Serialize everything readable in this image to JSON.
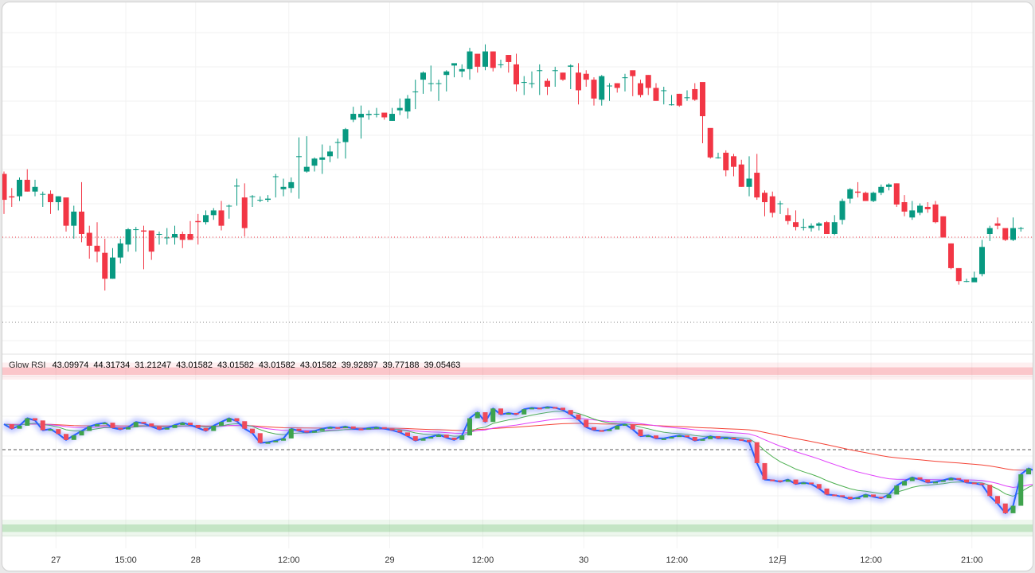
{
  "chart_data": [
    {
      "type": "candlestick",
      "panel": "price",
      "x_labels": [
        "27",
        "15:00",
        "28",
        "12:00",
        "29",
        "12:00",
        "30",
        "12:00",
        "12月",
        "12:00",
        "21:00"
      ],
      "ohlc": [
        [
          0,
          126,
          104,
          128,
          92
        ],
        [
          1,
          107,
          106,
          114,
          98
        ],
        [
          2,
          107,
          121,
          123,
          103
        ],
        [
          3,
          121,
          111,
          130,
          111
        ],
        [
          4,
          111,
          115,
          121,
          107
        ],
        [
          5,
          109,
          109,
          111,
          98
        ],
        [
          6,
          109,
          102,
          112,
          92
        ],
        [
          7,
          102,
          107,
          107,
          95
        ],
        [
          8,
          106,
          82,
          97,
          77
        ],
        [
          9,
          82,
          94,
          99,
          71
        ],
        [
          10,
          94,
          75,
          119,
          68
        ],
        [
          11,
          76,
          65,
          82,
          54
        ],
        [
          12,
          65,
          60,
          85,
          51
        ],
        [
          13,
          59,
          37,
          71,
          27
        ],
        [
          14,
          37,
          55,
          63,
          37
        ],
        [
          15,
          55,
          67,
          71,
          50
        ],
        [
          16,
          66,
          79,
          80,
          60
        ],
        [
          17,
          79,
          79,
          81,
          60
        ],
        [
          18,
          78,
          77,
          82,
          45
        ],
        [
          19,
          78,
          60,
          66,
          53
        ],
        [
          20,
          75,
          75,
          77,
          66
        ],
        [
          21,
          72,
          72,
          80,
          66
        ],
        [
          22,
          72,
          75,
          82,
          66
        ],
        [
          23,
          75,
          70,
          77,
          63
        ],
        [
          24,
          75,
          70,
          86,
          70
        ],
        [
          25,
          86,
          85,
          92,
          66
        ],
        [
          26,
          85,
          91,
          95,
          83
        ],
        [
          27,
          91,
          95,
          97,
          87
        ],
        [
          28,
          95,
          82,
          103,
          78
        ],
        [
          29,
          99,
          99,
          100,
          88
        ],
        [
          30,
          116,
          116,
          122,
          99
        ],
        [
          31,
          106,
          80,
          118,
          73
        ],
        [
          32,
          107,
          107,
          108,
          98
        ],
        [
          33,
          104,
          104,
          107,
          102
        ],
        [
          34,
          104,
          105,
          108,
          102
        ],
        [
          35,
          124,
          124,
          126,
          106
        ],
        [
          36,
          113,
          115,
          122,
          107
        ],
        [
          37,
          114,
          119,
          123,
          110
        ],
        [
          38,
          141,
          141,
          157,
          105
        ],
        [
          39,
          128,
          132,
          158,
          127
        ],
        [
          40,
          133,
          139,
          140,
          128
        ],
        [
          41,
          138,
          140,
          151,
          126
        ],
        [
          42,
          141,
          145,
          150,
          136
        ],
        [
          43,
          153,
          153,
          156,
          139
        ],
        [
          44,
          153,
          164,
          165,
          139
        ],
        [
          45,
          172,
          177,
          183,
          170
        ],
        [
          46,
          174,
          177,
          184,
          156
        ],
        [
          47,
          176,
          177,
          180,
          172
        ],
        [
          48,
          177,
          177,
          182,
          174
        ],
        [
          49,
          178,
          174,
          176,
          172
        ],
        [
          50,
          171,
          177,
          182,
          171
        ],
        [
          51,
          180,
          182,
          190,
          176
        ],
        [
          52,
          179,
          190,
          193,
          173
        ],
        [
          53,
          196,
          196,
          206,
          181
        ],
        [
          54,
          206,
          212,
          213,
          194
        ],
        [
          55,
          203,
          203,
          218,
          196
        ],
        [
          56,
          203,
          203,
          206,
          188
        ],
        [
          57,
          210,
          213,
          214,
          196
        ],
        [
          58,
          218,
          220,
          219,
          208
        ],
        [
          59,
          213,
          215,
          219,
          208
        ],
        [
          60,
          215,
          230,
          233,
          206
        ],
        [
          61,
          228,
          217,
          219,
          212
        ],
        [
          62,
          217,
          230,
          236,
          214
        ],
        [
          63,
          230,
          216,
          230,
          213
        ],
        [
          64,
          219,
          219,
          223,
          216
        ],
        [
          65,
          227,
          221,
          227,
          212
        ],
        [
          66,
          219,
          202,
          228,
          196
        ],
        [
          67,
          204,
          204,
          209,
          193
        ],
        [
          68,
          203,
          203,
          213,
          199
        ],
        [
          69,
          214,
          214,
          219,
          193
        ],
        [
          70,
          205,
          200,
          207,
          193
        ],
        [
          71,
          214,
          214,
          217,
          200
        ],
        [
          72,
          212,
          206,
          212,
          205
        ],
        [
          73,
          217,
          218,
          219,
          198
        ],
        [
          74,
          212,
          197,
          220,
          185
        ],
        [
          75,
          211,
          206,
          214,
          200
        ],
        [
          76,
          206,
          190,
          208,
          184
        ],
        [
          77,
          189,
          209,
          210,
          184
        ],
        [
          78,
          201,
          201,
          203,
          188
        ],
        [
          79,
          203,
          199,
          203,
          195
        ],
        [
          80,
          208,
          208,
          211,
          196
        ],
        [
          81,
          214,
          209,
          211,
          192
        ],
        [
          82,
          203,
          193,
          206,
          191
        ],
        [
          83,
          210,
          199,
          210,
          193
        ],
        [
          84,
          199,
          188,
          203,
          188
        ],
        [
          85,
          197,
          197,
          200,
          185
        ],
        [
          86,
          185,
          185,
          193,
          184
        ],
        [
          87,
          194,
          184,
          194,
          183
        ],
        [
          88,
          191,
          191,
          197,
          188
        ],
        [
          89,
          198,
          189,
          203,
          188
        ],
        [
          90,
          204,
          175,
          203,
          152
        ],
        [
          91,
          165,
          140,
          164,
          139
        ],
        [
          92,
          140,
          140,
          144,
          139
        ],
        [
          93,
          144,
          129,
          146,
          124
        ],
        [
          94,
          141,
          132,
          143,
          124
        ],
        [
          95,
          134,
          115,
          138,
          115
        ],
        [
          96,
          115,
          122,
          141,
          107
        ],
        [
          97,
          127,
          106,
          143,
          104
        ],
        [
          98,
          110,
          102,
          112,
          90
        ],
        [
          99,
          107,
          93,
          111,
          89
        ],
        [
          100,
          101,
          101,
          103,
          92
        ],
        [
          101,
          91,
          86,
          97,
          83
        ],
        [
          102,
          85,
          81,
          95,
          78
        ],
        [
          103,
          81,
          81,
          88,
          78
        ],
        [
          104,
          80,
          82,
          84,
          77
        ],
        [
          105,
          82,
          84,
          85,
          78
        ],
        [
          106,
          85,
          75,
          86,
          75
        ],
        [
          107,
          75,
          85,
          91,
          74
        ],
        [
          108,
          87,
          103,
          105,
          83
        ],
        [
          109,
          105,
          113,
          114,
          101
        ],
        [
          110,
          111,
          110,
          119,
          106
        ],
        [
          111,
          110,
          103,
          111,
          103
        ],
        [
          112,
          103,
          110,
          111,
          102
        ],
        [
          113,
          110,
          115,
          117,
          108
        ],
        [
          114,
          115,
          117,
          118,
          112
        ],
        [
          115,
          118,
          100,
          118,
          98
        ],
        [
          116,
          102,
          94,
          108,
          90
        ],
        [
          117,
          89,
          95,
          103,
          87
        ],
        [
          118,
          93,
          99,
          101,
          91
        ],
        [
          119,
          98,
          96,
          102,
          93
        ],
        [
          120,
          100,
          85,
          103,
          84
        ],
        [
          121,
          90,
          72,
          90,
          74
        ],
        [
          122,
          67,
          46,
          67,
          45
        ],
        [
          123,
          46,
          35,
          46,
          32
        ],
        [
          124,
          35,
          35,
          37,
          34
        ],
        [
          125,
          34,
          38,
          43,
          36
        ],
        [
          126,
          41,
          64,
          70,
          39
        ],
        [
          127,
          75,
          80,
          82,
          69
        ],
        [
          128,
          84,
          82,
          89,
          79
        ],
        [
          129,
          80,
          70,
          76,
          69
        ],
        [
          130,
          70,
          80,
          89,
          69
        ],
        [
          131,
          80,
          80,
          81,
          77
        ]
      ]
    },
    {
      "type": "line",
      "panel": "indicator",
      "title": "Glow RSI",
      "legend_values": [
        "43.09974",
        "44.31734",
        "31.21247",
        "43.01582",
        "43.01582",
        "43.01582",
        "43.01582",
        "39.92897",
        "39.77188",
        "39.05463"
      ],
      "legend_colors": [
        "#f23645",
        "#f23645",
        "#f23645",
        "#f23645",
        "#2962ff",
        "#2962ff",
        "#2962ff",
        "#4caf50",
        "#e040fb",
        "#f44336"
      ],
      "ylim": [
        25,
        75
      ],
      "overbought_band": [
        70,
        72
      ],
      "oversold_band": [
        28,
        30
      ],
      "midline": 50,
      "rsi": [
        56.8,
        55.6,
        56.4,
        58.4,
        57.8,
        55.2,
        55.5,
        54.2,
        52.6,
        53.8,
        55.0,
        56.2,
        56.8,
        57.2,
        55.8,
        55.4,
        56.0,
        57.4,
        57.0,
        56.2,
        55.4,
        55.8,
        56.6,
        57.2,
        56.6,
        55.8,
        55.0,
        56.4,
        57.4,
        58.4,
        57.6,
        55.6,
        54.4,
        51.8,
        52.0,
        52.4,
        53.0,
        55.6,
        55.0,
        54.6,
        55.0,
        55.6,
        56.0,
        55.8,
        56.2,
        55.6,
        55.4,
        55.8,
        56.0,
        55.6,
        55.2,
        54.6,
        53.6,
        52.4,
        53.0,
        53.4,
        54.0,
        53.2,
        52.6,
        53.8,
        58.4,
        60.0,
        57.4,
        61.0,
        59.4,
        59.8,
        59.4,
        60.8,
        61.2,
        61.0,
        61.4,
        61.2,
        60.6,
        59.4,
        58.0,
        56.0,
        55.2,
        55.0,
        55.4,
        56.4,
        56.8,
        55.4,
        53.6,
        53.8,
        53.0,
        53.0,
        53.4,
        53.8,
        53.4,
        52.4,
        52.8,
        53.6,
        53.0,
        53.2,
        52.8,
        52.6,
        52.0,
        46.4,
        42.0,
        41.8,
        41.4,
        42.0,
        40.8,
        41.2,
        40.8,
        39.6,
        38.0,
        37.8,
        37.4,
        36.8,
        37.2,
        38.0,
        37.4,
        37.0,
        38.0,
        40.4,
        41.6,
        42.6,
        42.0,
        41.2,
        41.4,
        41.8,
        42.4,
        42.0,
        41.2,
        41.0,
        40.6,
        37.6,
        35.6,
        33.0,
        35.0,
        43.4,
        45.0,
        44.2,
        44.6
      ]
    }
  ]
}
